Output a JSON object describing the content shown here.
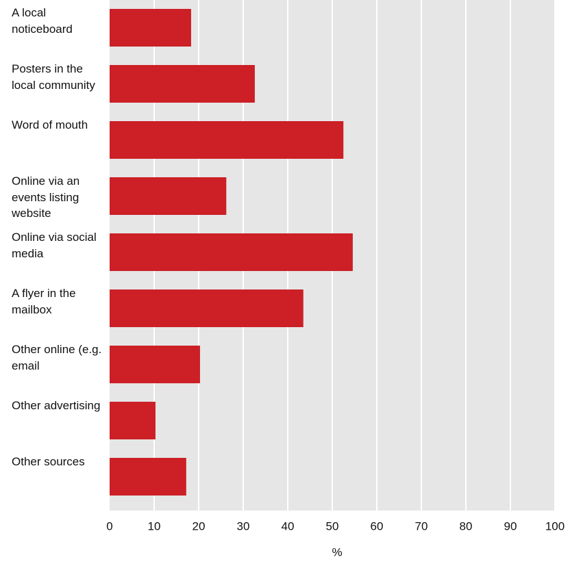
{
  "chart_data": {
    "type": "bar",
    "orientation": "horizontal",
    "categories": [
      "A local noticeboard",
      "Posters in the local community",
      "Word of mouth",
      "Online via an events listing website",
      "Online via social media",
      "A flyer in the mailbox",
      "Other online (e.g. email",
      "Other advertising",
      "Other sources"
    ],
    "values": [
      18.3,
      32.6,
      52.5,
      26.2,
      54.6,
      43.5,
      20.3,
      10.3,
      17.2
    ],
    "color": "#cc1f26",
    "xlim": [
      0,
      100
    ],
    "xticks": [
      0,
      10,
      20,
      30,
      40,
      50,
      60,
      70,
      80,
      90,
      100
    ],
    "xlabel": "%",
    "grid": true
  }
}
